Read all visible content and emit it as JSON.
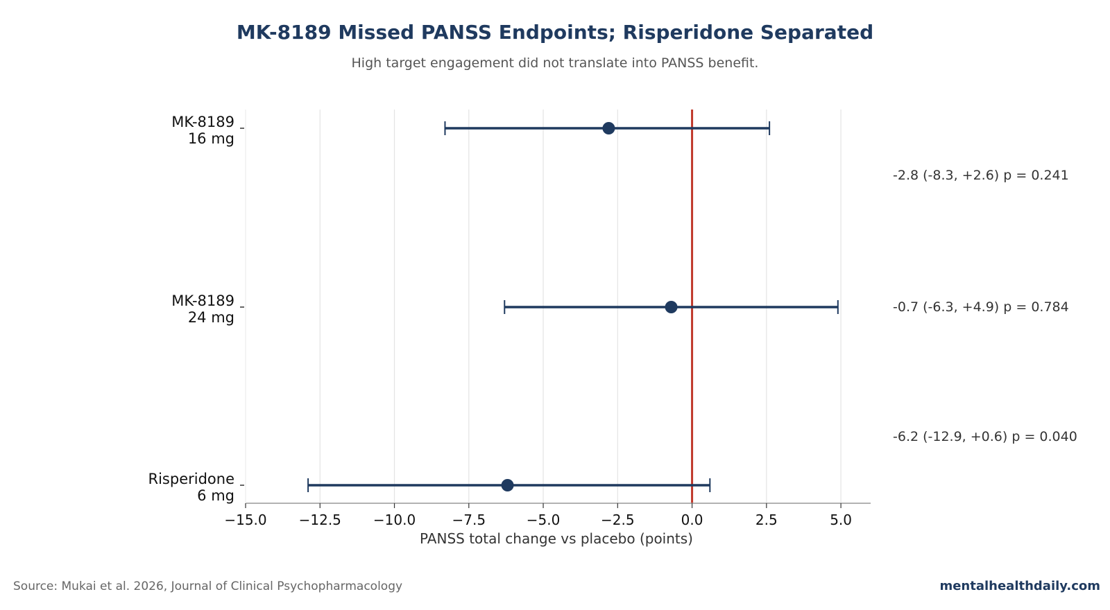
{
  "chart_data": {
    "type": "forest",
    "title": "MK-8189 Missed PANSS Endpoints; Risperidone Separated",
    "subtitle": "High target engagement did not translate into PANSS benefit.",
    "xlabel": "PANSS total change vs placebo (points)",
    "xlim": [
      -15.0,
      6.0
    ],
    "xticks": [
      -15.0,
      -12.5,
      -10.0,
      -7.5,
      -5.0,
      -2.5,
      0.0,
      2.5,
      5.0
    ],
    "xtick_labels": [
      "−15.0",
      "−12.5",
      "−10.0",
      "−7.5",
      "−5.0",
      "−2.5",
      "0.0",
      "2.5",
      "5.0"
    ],
    "reference_line": 0.0,
    "grid": "vertical",
    "rows": [
      {
        "label_line1": "MK-8189",
        "label_line2": "16 mg",
        "estimate": -2.8,
        "ci_low": -8.3,
        "ci_high": 2.6,
        "annotation": "-2.8 (-8.3, +2.6)  p = 0.241"
      },
      {
        "label_line1": "MK-8189",
        "label_line2": "24 mg",
        "estimate": -0.7,
        "ci_low": -6.3,
        "ci_high": 4.9,
        "annotation": "-0.7 (-6.3, +4.9)  p = 0.784"
      },
      {
        "label_line1": "Risperidone",
        "label_line2": "6 mg",
        "estimate": -6.2,
        "ci_low": -12.9,
        "ci_high": 0.6,
        "annotation": "-6.2 (-12.9, +0.6)  p = 0.040"
      }
    ],
    "colors": {
      "marker": "#1f3a5f",
      "reference": "#c0392b",
      "grid": "#e3e3e3",
      "axis": "#999999"
    }
  },
  "footer": {
    "source": "Source: Mukai et al. 2026, Journal of Clinical Psychopharmacology",
    "brand": "mentalhealthdaily.com"
  }
}
